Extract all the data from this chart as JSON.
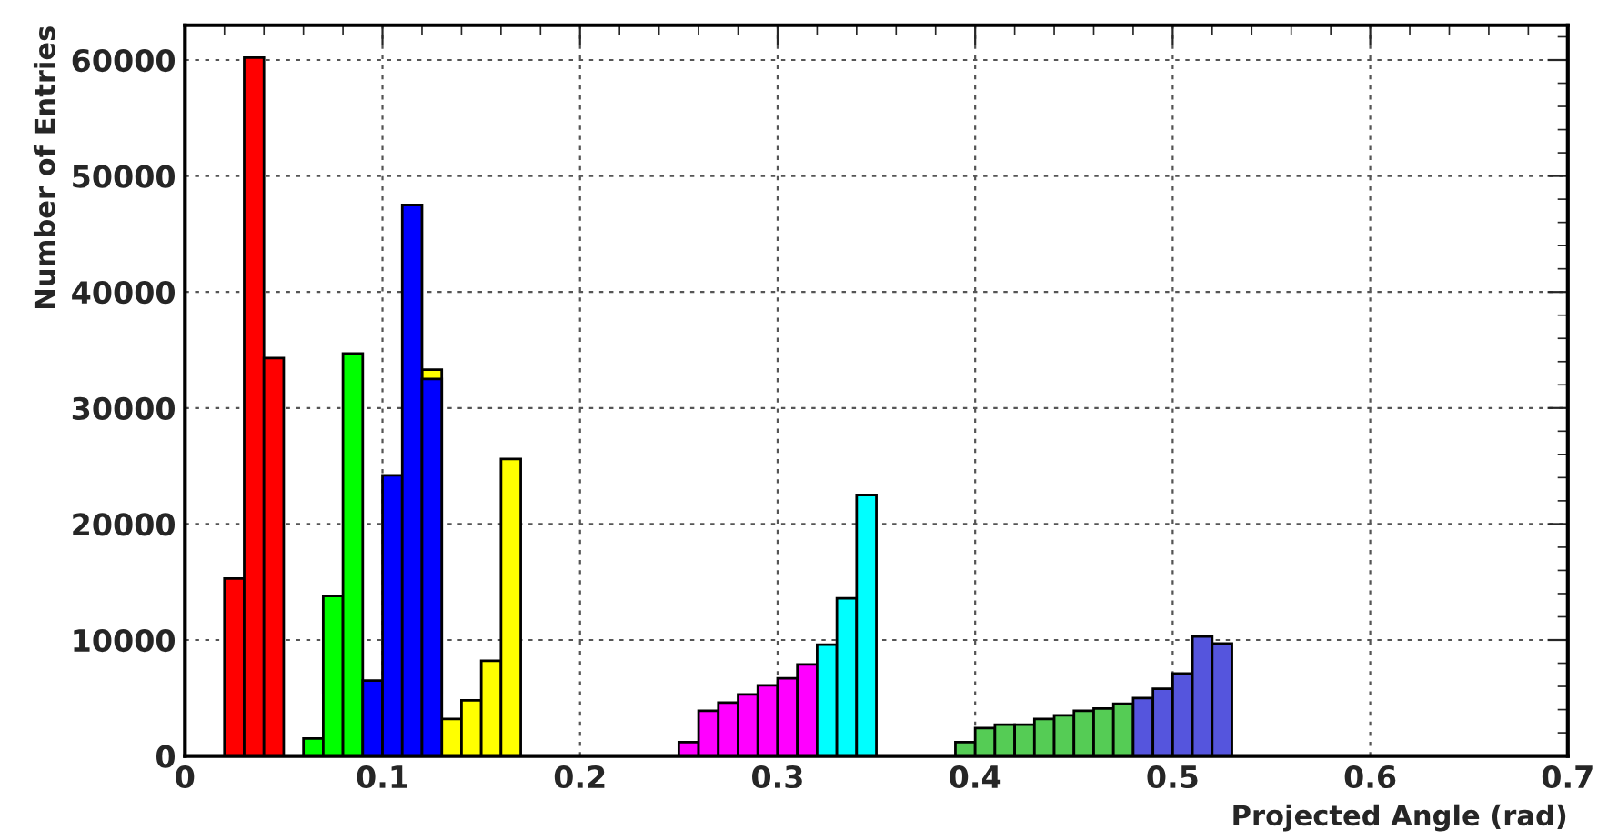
{
  "chart_data": {
    "type": "histogram",
    "xlabel": "Projected Angle (rad)",
    "ylabel": "Number of Entries",
    "xlim": [
      0,
      0.7
    ],
    "xticks": [
      0,
      0.1,
      0.2,
      0.3,
      0.4,
      0.5,
      0.6,
      0.7
    ],
    "ylim": [
      0,
      63000
    ],
    "yticks": [
      0,
      10000,
      20000,
      30000,
      40000,
      50000,
      60000
    ],
    "grid": true,
    "bins": [
      0.02,
      0.03,
      0.04,
      0.05,
      0.06,
      0.07,
      0.08,
      0.09,
      0.1,
      0.11,
      0.12,
      0.13,
      0.14,
      0.15,
      0.16,
      0.17,
      0.18,
      0.19,
      0.2,
      0.21,
      0.22,
      0.23,
      0.24,
      0.25,
      0.26,
      0.27,
      0.28,
      0.29,
      0.3,
      0.31,
      0.32,
      0.33,
      0.34,
      0.35,
      0.36,
      0.37,
      0.38,
      0.39,
      0.4,
      0.41,
      0.42,
      0.43,
      0.44,
      0.45,
      0.46,
      0.47,
      0.48,
      0.49,
      0.5,
      0.51,
      0.52,
      0.53
    ],
    "series": [
      {
        "color": "#ff0000",
        "values": [
          15300,
          60200,
          34300,
          null,
          null,
          null,
          null,
          null,
          null,
          null,
          null,
          null,
          null,
          null,
          null,
          null,
          null,
          null,
          null,
          null,
          null,
          null,
          null,
          null,
          null,
          null,
          null,
          null,
          null,
          null,
          null,
          null,
          null,
          null,
          null,
          null,
          null,
          null,
          null,
          null,
          null,
          null,
          null,
          null,
          null,
          null,
          null,
          null,
          null,
          null,
          null
        ]
      },
      {
        "color": "#00ff00",
        "values": [
          null,
          null,
          null,
          null,
          1500,
          13800,
          34700,
          null,
          null,
          null,
          null,
          null,
          null,
          null,
          null,
          null,
          null,
          null,
          null,
          null,
          null,
          null,
          null,
          null,
          null,
          null,
          null,
          null,
          null,
          null,
          null,
          null,
          null,
          null,
          null,
          null,
          null,
          null,
          null,
          null,
          null,
          null,
          null,
          null,
          null,
          null,
          null,
          null,
          null,
          null,
          null
        ]
      },
      {
        "color": "#ffff00",
        "values": [
          null,
          null,
          null,
          null,
          null,
          null,
          null,
          null,
          null,
          null,
          33300,
          3200,
          4800,
          8200,
          25600,
          null,
          null,
          null,
          null,
          null,
          null,
          null,
          null,
          null,
          null,
          null,
          null,
          null,
          null,
          null,
          null,
          null,
          null,
          null,
          null,
          null,
          null,
          null,
          null,
          null,
          null,
          null,
          null,
          null,
          null,
          null,
          null,
          null,
          null,
          null,
          null
        ]
      },
      {
        "color": "#0000ff",
        "values": [
          null,
          null,
          null,
          null,
          null,
          null,
          null,
          6500,
          24200,
          47500,
          32500,
          null,
          null,
          null,
          null,
          null,
          null,
          null,
          null,
          null,
          null,
          null,
          null,
          null,
          null,
          null,
          null,
          null,
          null,
          null,
          null,
          null,
          null,
          null,
          null,
          null,
          null,
          null,
          null,
          null,
          null,
          null,
          null,
          null,
          null,
          null,
          null,
          null,
          null,
          null,
          null
        ]
      },
      {
        "color": "#ff00ff",
        "values": [
          null,
          null,
          null,
          null,
          null,
          null,
          null,
          null,
          null,
          null,
          null,
          null,
          null,
          null,
          null,
          null,
          null,
          null,
          null,
          null,
          null,
          null,
          null,
          1200,
          3900,
          4600,
          5300,
          6100,
          6700,
          7900,
          null,
          null,
          null,
          null,
          null,
          null,
          null,
          null,
          null,
          null,
          null,
          null,
          null,
          null,
          null,
          null,
          null,
          null,
          null,
          null,
          null
        ]
      },
      {
        "color": "#00ffff",
        "values": [
          null,
          null,
          null,
          null,
          null,
          null,
          null,
          null,
          null,
          null,
          null,
          null,
          null,
          null,
          null,
          null,
          null,
          null,
          null,
          null,
          null,
          null,
          null,
          null,
          null,
          null,
          null,
          null,
          null,
          null,
          9600,
          13600,
          22500,
          null,
          null,
          null,
          null,
          null,
          null,
          null,
          null,
          null,
          null,
          null,
          null,
          null,
          null,
          null,
          null,
          null,
          null
        ]
      },
      {
        "color": "#55cc55",
        "values": [
          null,
          null,
          null,
          null,
          null,
          null,
          null,
          null,
          null,
          null,
          null,
          null,
          null,
          null,
          null,
          null,
          null,
          null,
          null,
          null,
          null,
          null,
          null,
          null,
          null,
          null,
          null,
          null,
          null,
          null,
          null,
          null,
          null,
          null,
          null,
          null,
          null,
          1200,
          2400,
          2700,
          2700,
          3200,
          3500,
          3900,
          4100,
          4500,
          null,
          null,
          null,
          null,
          null
        ]
      },
      {
        "color": "#5555dd",
        "values": [
          null,
          null,
          null,
          null,
          null,
          null,
          null,
          null,
          null,
          null,
          null,
          null,
          null,
          null,
          null,
          null,
          null,
          null,
          null,
          null,
          null,
          null,
          null,
          null,
          null,
          null,
          null,
          null,
          null,
          null,
          null,
          null,
          null,
          null,
          null,
          null,
          null,
          null,
          null,
          null,
          null,
          null,
          null,
          null,
          null,
          null,
          5000,
          5800,
          7100,
          10300,
          9700
        ]
      }
    ]
  }
}
